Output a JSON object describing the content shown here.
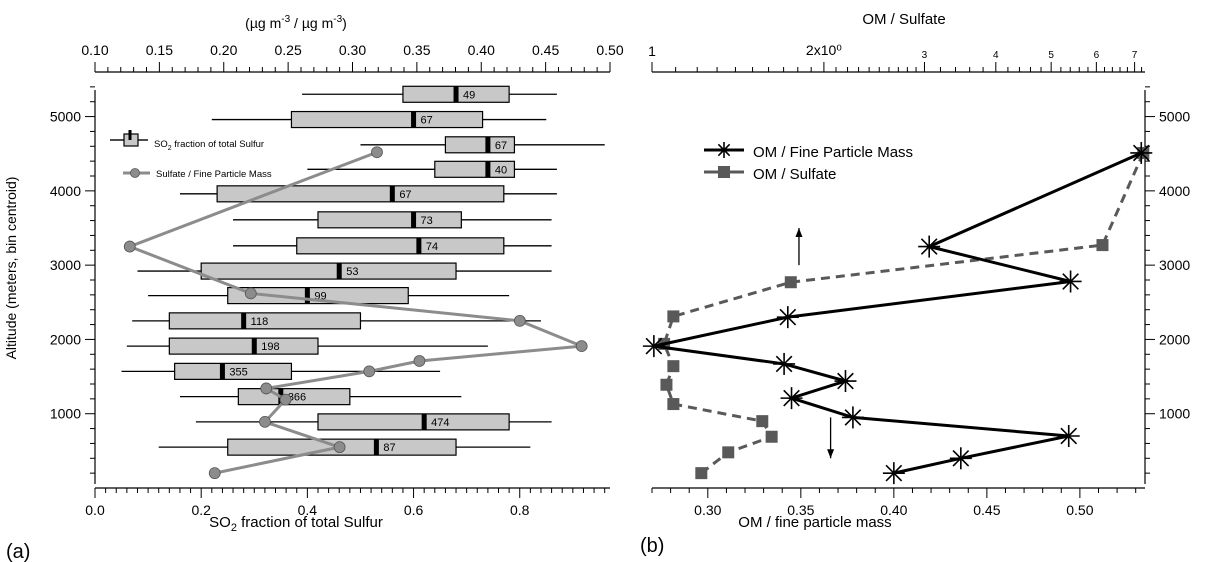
{
  "chart_data": [
    {
      "panel_label": "(a)",
      "type": "boxplot",
      "xlabel_bottom": "SO2 fraction of total Sulfur",
      "xlabel_top": "(µg m-3 / µg m-3)",
      "ylabel": "Altitude (meters, bin centroid)",
      "xlim_bottom": [
        0.0,
        0.97
      ],
      "xlim_top": [
        0.1,
        0.5
      ],
      "ylim": [
        0,
        5600
      ],
      "xticks_bottom": [
        "0.0",
        "0.2",
        "0.4",
        "0.6",
        "0.8"
      ],
      "xticks_top": [
        "0.10",
        "0.15",
        "0.20",
        "0.25",
        "0.30",
        "0.35",
        "0.40",
        "0.45",
        "0.50"
      ],
      "yticks": [
        "1000",
        "2000",
        "3000",
        "4000",
        "5000"
      ],
      "legend": {
        "box_label": "SO2 fraction of total Sulfur",
        "line_label": "Sulfate / Fine Particle Mass"
      },
      "boxes": [
        {
          "alt": 5300,
          "wlo": 0.39,
          "q1": 0.58,
          "med": 0.68,
          "q3": 0.78,
          "whi": 0.87,
          "n": "49"
        },
        {
          "alt": 4960,
          "wlo": 0.22,
          "q1": 0.37,
          "med": 0.6,
          "q3": 0.73,
          "whi": 0.85,
          "n": "67"
        },
        {
          "alt": 4620,
          "wlo": 0.5,
          "q1": 0.66,
          "med": 0.74,
          "q3": 0.79,
          "whi": 0.96,
          "n": "67"
        },
        {
          "alt": 4290,
          "wlo": 0.4,
          "q1": 0.64,
          "med": 0.74,
          "q3": 0.79,
          "whi": 0.87,
          "n": "40"
        },
        {
          "alt": 3960,
          "wlo": 0.16,
          "q1": 0.23,
          "med": 0.56,
          "q3": 0.77,
          "whi": 0.87,
          "n": "67"
        },
        {
          "alt": 3610,
          "wlo": 0.26,
          "q1": 0.42,
          "med": 0.6,
          "q3": 0.69,
          "whi": 0.86,
          "n": "73"
        },
        {
          "alt": 3260,
          "wlo": 0.26,
          "q1": 0.38,
          "med": 0.61,
          "q3": 0.77,
          "whi": 0.86,
          "n": "74"
        },
        {
          "alt": 2920,
          "wlo": 0.08,
          "q1": 0.2,
          "med": 0.46,
          "q3": 0.68,
          "whi": 0.86,
          "n": "53"
        },
        {
          "alt": 2590,
          "wlo": 0.1,
          "q1": 0.25,
          "med": 0.4,
          "q3": 0.59,
          "whi": 0.78,
          "n": "99"
        },
        {
          "alt": 2250,
          "wlo": 0.07,
          "q1": 0.14,
          "med": 0.28,
          "q3": 0.5,
          "whi": 0.84,
          "n": "118"
        },
        {
          "alt": 1910,
          "wlo": 0.06,
          "q1": 0.14,
          "med": 0.3,
          "q3": 0.42,
          "whi": 0.74,
          "n": "198"
        },
        {
          "alt": 1570,
          "wlo": 0.05,
          "q1": 0.15,
          "med": 0.24,
          "q3": 0.37,
          "whi": 0.65,
          "n": "355"
        },
        {
          "alt": 1230,
          "wlo": 0.16,
          "q1": 0.27,
          "med": 0.35,
          "q3": 0.48,
          "whi": 0.69,
          "n": "366"
        },
        {
          "alt": 890,
          "wlo": 0.19,
          "q1": 0.42,
          "med": 0.62,
          "q3": 0.78,
          "whi": 0.86,
          "n": "474"
        },
        {
          "alt": 550,
          "wlo": 0.12,
          "q1": 0.25,
          "med": 0.53,
          "q3": 0.68,
          "whi": 0.82,
          "n": "87"
        }
      ],
      "sulfate_series": [
        {
          "x": 0.193,
          "alt": 200
        },
        {
          "x": 0.29,
          "alt": 550
        },
        {
          "x": 0.232,
          "alt": 890
        },
        {
          "x": 0.248,
          "alt": 1190
        },
        {
          "x": 0.233,
          "alt": 1340
        },
        {
          "x": 0.313,
          "alt": 1570
        },
        {
          "x": 0.352,
          "alt": 1710
        },
        {
          "x": 0.478,
          "alt": 1910
        },
        {
          "x": 0.43,
          "alt": 2250
        },
        {
          "x": 0.221,
          "alt": 2620
        },
        {
          "x": 0.127,
          "alt": 3250
        },
        {
          "x": 0.319,
          "alt": 4520
        }
      ]
    },
    {
      "panel_label": "(b)",
      "type": "line",
      "xlabel_bottom": "OM / fine particle mass",
      "xlabel_top": "OM / Sulfate",
      "xlim_bottom": [
        0.27,
        0.535
      ],
      "xlim_top": [
        1,
        7.3
      ],
      "xscale_top": "log",
      "ylim": [
        0,
        5600
      ],
      "xticks_bottom": [
        "0.30",
        "0.35",
        "0.40",
        "0.45",
        "0.50"
      ],
      "xticks_top": [
        "1",
        "2x10⁰",
        "3",
        "4",
        "5",
        "6",
        "7"
      ],
      "yticks": [
        "1000",
        "2000",
        "3000",
        "4000",
        "5000"
      ],
      "series": [
        {
          "name": "OM / Fine Particle Mass",
          "points": [
            {
              "x": 0.4,
              "alt": 200
            },
            {
              "x": 0.436,
              "alt": 400
            },
            {
              "x": 0.494,
              "alt": 700
            },
            {
              "x": 0.378,
              "alt": 950
            },
            {
              "x": 0.345,
              "alt": 1210
            },
            {
              "x": 0.374,
              "alt": 1440
            },
            {
              "x": 0.341,
              "alt": 1670
            },
            {
              "x": 0.271,
              "alt": 1910
            },
            {
              "x": 0.343,
              "alt": 2300
            },
            {
              "x": 0.495,
              "alt": 2780
            },
            {
              "x": 0.419,
              "alt": 3250
            },
            {
              "x": 0.533,
              "alt": 4510
            }
          ]
        },
        {
          "name": "OM / Sulfate",
          "points": [
            {
              "x": 1.22,
              "alt": 200
            },
            {
              "x": 1.36,
              "alt": 480
            },
            {
              "x": 1.62,
              "alt": 690
            },
            {
              "x": 1.56,
              "alt": 900
            },
            {
              "x": 1.09,
              "alt": 1130
            },
            {
              "x": 1.06,
              "alt": 1390
            },
            {
              "x": 1.09,
              "alt": 1640
            },
            {
              "x": 1.05,
              "alt": 1940
            },
            {
              "x": 1.09,
              "alt": 2310
            },
            {
              "x": 1.75,
              "alt": 2770
            },
            {
              "x": 6.15,
              "alt": 3270
            },
            {
              "x": 7.25,
              "alt": 4510
            }
          ]
        }
      ],
      "arrows": [
        {
          "x": 0.349,
          "from_alt": 3000,
          "to_alt": 3500
        },
        {
          "x": 0.366,
          "from_alt": 950,
          "to_alt": 400
        }
      ]
    }
  ]
}
